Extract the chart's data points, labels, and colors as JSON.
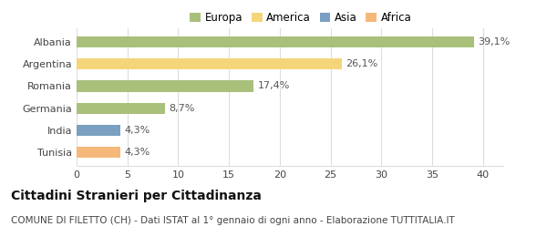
{
  "categories": [
    "Albania",
    "Argentina",
    "Romania",
    "Germania",
    "India",
    "Tunisia"
  ],
  "values": [
    39.1,
    26.1,
    17.4,
    8.7,
    4.3,
    4.3
  ],
  "bar_colors": [
    "#a8c07a",
    "#f5d57a",
    "#a8c07a",
    "#a8c07a",
    "#7a9fc0",
    "#f5b87a"
  ],
  "labels": [
    "39,1%",
    "26,1%",
    "17,4%",
    "8,7%",
    "4,3%",
    "4,3%"
  ],
  "legend_items": [
    {
      "label": "Europa",
      "color": "#a8c07a"
    },
    {
      "label": "America",
      "color": "#f5d57a"
    },
    {
      "label": "Asia",
      "color": "#7a9fc0"
    },
    {
      "label": "Africa",
      "color": "#f5b87a"
    }
  ],
  "xlim": [
    0,
    42
  ],
  "xticks": [
    0,
    5,
    10,
    15,
    20,
    25,
    30,
    35,
    40
  ],
  "title": "Cittadini Stranieri per Cittadinanza",
  "subtitle": "COMUNE DI FILETTO (CH) - Dati ISTAT al 1° gennaio di ogni anno - Elaborazione TUTTITALIA.IT",
  "background_color": "#ffffff",
  "grid_color": "#dddddd",
  "bar_height": 0.5,
  "label_fontsize": 8,
  "ytick_fontsize": 8,
  "xtick_fontsize": 8,
  "title_fontsize": 10,
  "subtitle_fontsize": 7.5
}
